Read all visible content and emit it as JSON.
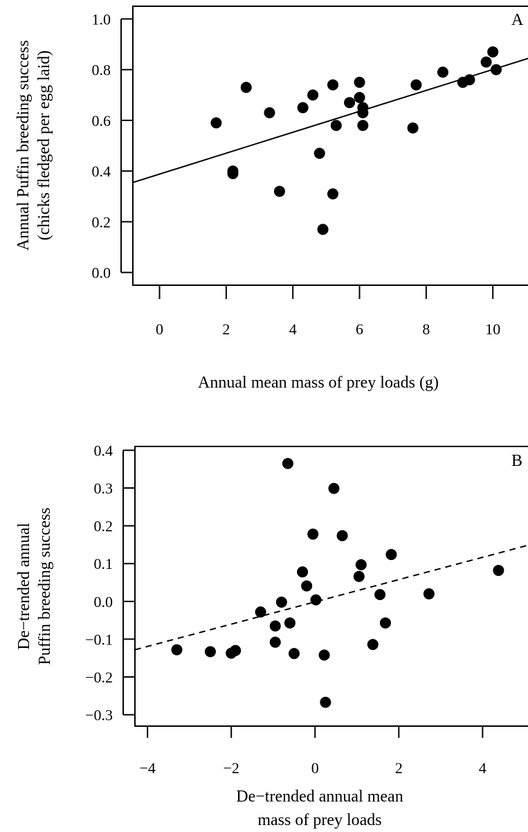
{
  "chart_data": [
    {
      "type": "scatter",
      "panel_label": "A",
      "xlabel": "Annual mean mass of prey loads (g)",
      "ylabel": [
        "Annual Puffin breeding success",
        "(chicks fledged per egg laid)"
      ],
      "xlim": [
        -0.8,
        11.2
      ],
      "ylim": [
        -0.05,
        1.05
      ],
      "xticks": [
        0,
        2,
        4,
        6,
        8,
        10
      ],
      "yticks": [
        0.0,
        0.2,
        0.4,
        0.6,
        0.8,
        1.0
      ],
      "xtick_labels": [
        "0",
        "2",
        "4",
        "6",
        "8",
        "10"
      ],
      "ytick_labels": [
        "0.0",
        "0.2",
        "0.4",
        "0.6",
        "0.8",
        "1.0"
      ],
      "grid": false,
      "legend": "none",
      "fit_line": {
        "style": "solid",
        "x": [
          -0.8,
          11.2
        ],
        "y": [
          0.355,
          0.85
        ]
      },
      "points": [
        {
          "x": 1.7,
          "y": 0.59
        },
        {
          "x": 2.2,
          "y": 0.4
        },
        {
          "x": 2.2,
          "y": 0.39
        },
        {
          "x": 2.6,
          "y": 0.73
        },
        {
          "x": 3.3,
          "y": 0.63
        },
        {
          "x": 3.6,
          "y": 0.32
        },
        {
          "x": 4.3,
          "y": 0.65
        },
        {
          "x": 4.6,
          "y": 0.7
        },
        {
          "x": 4.8,
          "y": 0.47
        },
        {
          "x": 4.9,
          "y": 0.17
        },
        {
          "x": 5.2,
          "y": 0.74
        },
        {
          "x": 5.2,
          "y": 0.31
        },
        {
          "x": 5.3,
          "y": 0.58
        },
        {
          "x": 5.7,
          "y": 0.67
        },
        {
          "x": 6.0,
          "y": 0.75
        },
        {
          "x": 6.0,
          "y": 0.69
        },
        {
          "x": 6.1,
          "y": 0.65
        },
        {
          "x": 6.1,
          "y": 0.63
        },
        {
          "x": 6.1,
          "y": 0.58
        },
        {
          "x": 7.6,
          "y": 0.57
        },
        {
          "x": 7.7,
          "y": 0.74
        },
        {
          "x": 8.5,
          "y": 0.79
        },
        {
          "x": 9.1,
          "y": 0.75
        },
        {
          "x": 9.3,
          "y": 0.76
        },
        {
          "x": 9.8,
          "y": 0.83
        },
        {
          "x": 10.0,
          "y": 0.87
        },
        {
          "x": 10.1,
          "y": 0.8
        }
      ]
    },
    {
      "type": "scatter",
      "panel_label": "B",
      "xlabel": [
        "De−trended annual mean",
        "mass of prey loads"
      ],
      "ylabel": [
        "De−trended annual",
        "Puffin breeding success"
      ],
      "xlim": [
        -4.3,
        5.2
      ],
      "ylim": [
        -0.33,
        0.41
      ],
      "xticks": [
        -4,
        -2,
        0,
        2,
        4
      ],
      "yticks": [
        -0.3,
        -0.2,
        -0.1,
        0.0,
        0.1,
        0.2,
        0.3,
        0.4
      ],
      "xtick_labels": [
        "−4",
        "−2",
        "0",
        "2",
        "4"
      ],
      "ytick_labels": [
        "−0.3",
        "−0.2",
        "−0.1",
        "0.0",
        "0.1",
        "0.2",
        "0.3",
        "0.4"
      ],
      "grid": false,
      "legend": "none",
      "fit_line": {
        "style": "dashed",
        "x": [
          -4.3,
          5.2
        ],
        "y": [
          -0.128,
          0.152
        ]
      },
      "points": [
        {
          "x": -3.3,
          "y": -0.128
        },
        {
          "x": -2.5,
          "y": -0.133
        },
        {
          "x": -2.0,
          "y": -0.137
        },
        {
          "x": -1.9,
          "y": -0.13
        },
        {
          "x": -1.3,
          "y": -0.028
        },
        {
          "x": -0.95,
          "y": -0.065
        },
        {
          "x": -0.95,
          "y": -0.108
        },
        {
          "x": -0.8,
          "y": -0.002
        },
        {
          "x": -0.65,
          "y": 0.365
        },
        {
          "x": -0.6,
          "y": -0.057
        },
        {
          "x": -0.5,
          "y": -0.138
        },
        {
          "x": -0.3,
          "y": 0.078
        },
        {
          "x": -0.2,
          "y": 0.041
        },
        {
          "x": -0.05,
          "y": 0.178
        },
        {
          "x": 0.02,
          "y": 0.004
        },
        {
          "x": 0.22,
          "y": -0.142
        },
        {
          "x": 0.25,
          "y": -0.267
        },
        {
          "x": 0.45,
          "y": 0.299
        },
        {
          "x": 0.65,
          "y": 0.174
        },
        {
          "x": 1.05,
          "y": 0.066
        },
        {
          "x": 1.1,
          "y": 0.097
        },
        {
          "x": 1.38,
          "y": -0.114
        },
        {
          "x": 1.55,
          "y": 0.018
        },
        {
          "x": 1.68,
          "y": -0.057
        },
        {
          "x": 1.82,
          "y": 0.124
        },
        {
          "x": 2.72,
          "y": 0.02
        },
        {
          "x": 4.38,
          "y": 0.082
        }
      ]
    }
  ]
}
